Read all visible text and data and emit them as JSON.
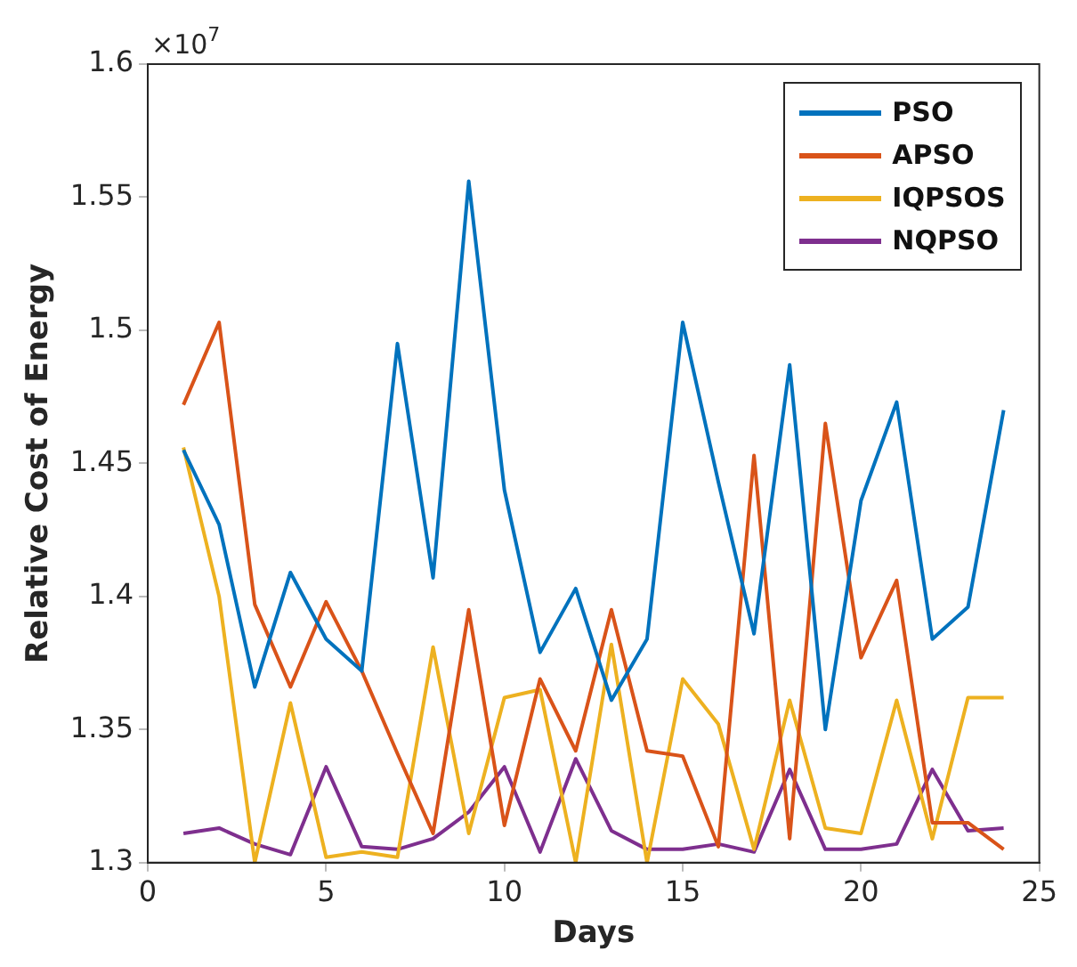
{
  "chart_data": {
    "type": "line",
    "xlabel": "Days",
    "ylabel": "Relative Cost of Energy",
    "annotations": [
      "×10$^{7}$"
    ],
    "x": [
      1,
      2,
      3,
      4,
      5,
      6,
      7,
      8,
      9,
      10,
      11,
      12,
      13,
      14,
      15,
      16,
      17,
      18,
      19,
      20,
      21,
      22,
      23,
      24
    ],
    "series": [
      {
        "name": "PSO",
        "color": "#0072bd",
        "values": [
          1.455,
          1.427,
          1.366,
          1.409,
          1.384,
          1.372,
          1.495,
          1.407,
          1.556,
          1.44,
          1.379,
          1.403,
          1.361,
          1.384,
          1.503,
          1.443,
          1.386,
          1.487,
          1.35,
          1.436,
          1.473,
          1.384,
          1.396,
          1.47
        ]
      },
      {
        "name": "APSO",
        "color": "#d95319",
        "values": [
          1.472,
          1.503,
          1.397,
          1.366,
          1.398,
          1.372,
          1.341,
          1.311,
          1.395,
          1.314,
          1.369,
          1.342,
          1.395,
          1.342,
          1.34,
          1.306,
          1.453,
          1.309,
          1.465,
          1.377,
          1.406,
          1.315,
          1.315,
          1.305
        ]
      },
      {
        "name": "IQPSOS",
        "color": "#edb120",
        "values": [
          1.456,
          1.4,
          1.3,
          1.36,
          1.302,
          1.304,
          1.302,
          1.381,
          1.311,
          1.362,
          1.365,
          1.3,
          1.382,
          1.3,
          1.369,
          1.352,
          1.305,
          1.361,
          1.313,
          1.311,
          1.361,
          1.309,
          1.362,
          1.362
        ]
      },
      {
        "name": "NQPSO",
        "color": "#7e2f8e",
        "values": [
          1.311,
          1.313,
          1.307,
          1.303,
          1.336,
          1.306,
          1.305,
          1.309,
          1.319,
          1.336,
          1.304,
          1.339,
          1.312,
          1.305,
          1.305,
          1.307,
          1.304,
          1.335,
          1.305,
          1.305,
          1.307,
          1.335,
          1.312,
          1.313
        ]
      }
    ],
    "xlim": [
      0,
      25
    ],
    "xticks": [
      0,
      5,
      10,
      15,
      20,
      25
    ],
    "ylim": [
      1.3,
      1.6
    ],
    "yticks": [
      1.3,
      1.35,
      1.4,
      1.45,
      1.5,
      1.55,
      1.6
    ],
    "grid": false,
    "legend": "top right",
    "marker": "none",
    "line_style": "solid"
  }
}
